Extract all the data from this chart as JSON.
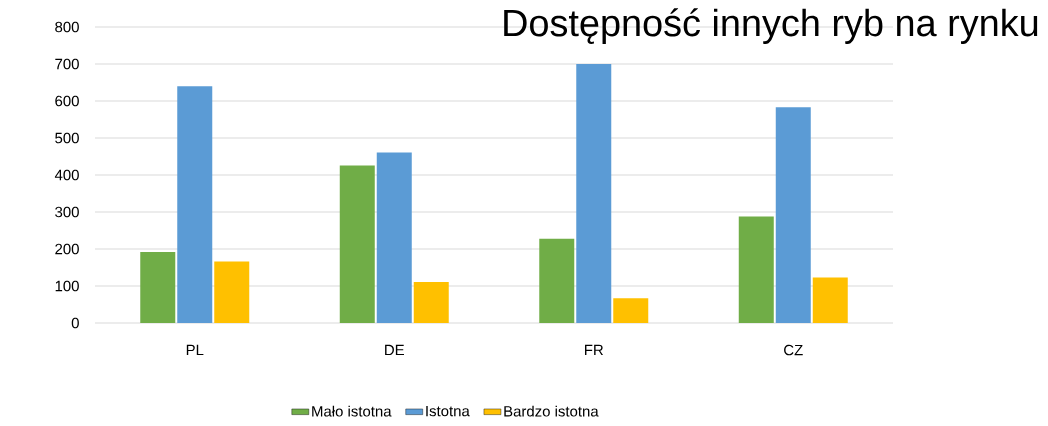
{
  "chart_data": {
    "type": "bar",
    "title": "Dostępność innych ryb na rynku",
    "categories": [
      "PL",
      "DE",
      "FR",
      "CZ"
    ],
    "series": [
      {
        "name": "Mało istotna",
        "color": "#70ad47",
        "values": [
          192,
          426,
          228,
          288
        ]
      },
      {
        "name": "Istotna",
        "color": "#5b9bd5",
        "values": [
          640,
          461,
          700,
          583
        ]
      },
      {
        "name": "Bardzo istotna",
        "color": "#ffc000",
        "values": [
          166,
          111,
          67,
          123
        ]
      }
    ],
    "ylim": [
      0,
      800
    ],
    "yticks": [
      0,
      100,
      200,
      300,
      400,
      500,
      600,
      700,
      800
    ],
    "grid": "y",
    "legend": "bottom"
  }
}
